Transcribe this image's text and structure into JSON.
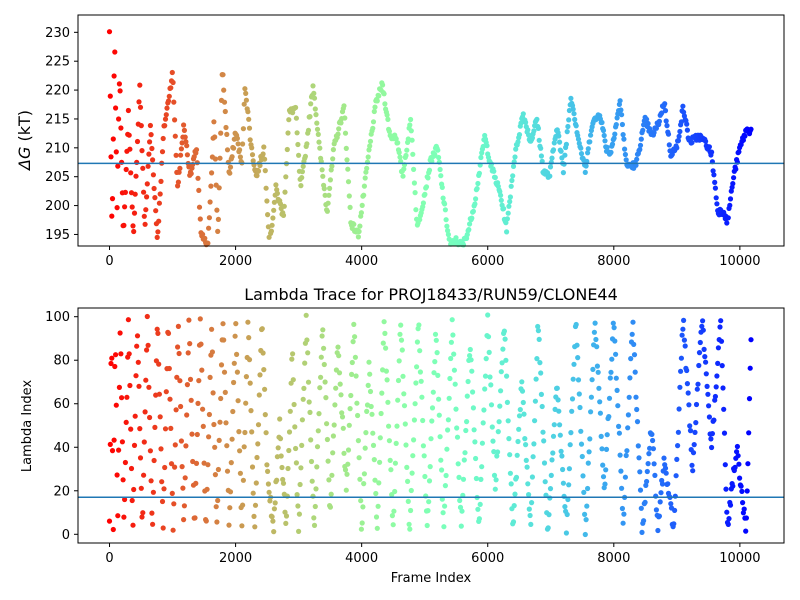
{
  "chart_data": [
    {
      "type": "scatter",
      "title": "",
      "xlabel": "",
      "ylabel_symbol": "ΔG",
      "ylabel_unit": " (kT)",
      "xlim": [
        -500,
        10700
      ],
      "ylim": [
        193,
        233
      ],
      "xticks": [
        0,
        2000,
        4000,
        6000,
        8000,
        10000
      ],
      "yticks": [
        195,
        200,
        205,
        210,
        215,
        220,
        225,
        230
      ],
      "hline": 207.3,
      "hline_color": "#1f77b4",
      "colormap": "rainbow-reversed",
      "x_max_frame": 10180,
      "keypoints": [
        [
          0,
          230
        ],
        [
          40,
          194
        ],
        [
          80,
          229
        ],
        [
          120,
          200
        ],
        [
          160,
          224
        ],
        [
          220,
          194
        ],
        [
          300,
          216
        ],
        [
          380,
          194
        ],
        [
          480,
          221
        ],
        [
          560,
          196
        ],
        [
          650,
          214
        ],
        [
          760,
          194
        ],
        [
          860,
          213
        ],
        [
          1000,
          223
        ],
        [
          1080,
          203
        ],
        [
          1180,
          214
        ],
        [
          1280,
          205
        ],
        [
          1380,
          210
        ],
        [
          1450,
          195
        ],
        [
          1560,
          193
        ],
        [
          1660,
          215
        ],
        [
          1720,
          194
        ],
        [
          1790,
          224
        ],
        [
          1900,
          205
        ],
        [
          2000,
          213
        ],
        [
          2100,
          207
        ],
        [
          2150,
          221
        ],
        [
          2250,
          210
        ],
        [
          2330,
          205
        ],
        [
          2450,
          210
        ],
        [
          2540,
          193
        ],
        [
          2640,
          203
        ],
        [
          2760,
          198
        ],
        [
          2850,
          216
        ],
        [
          2950,
          217
        ],
        [
          3030,
          203
        ],
        [
          3120,
          210
        ],
        [
          3230,
          221
        ],
        [
          3330,
          210
        ],
        [
          3450,
          199
        ],
        [
          3560,
          210
        ],
        [
          3720,
          217
        ],
        [
          3830,
          197
        ],
        [
          3950,
          195
        ],
        [
          4100,
          208
        ],
        [
          4230,
          218
        ],
        [
          4330,
          221
        ],
        [
          4450,
          212
        ],
        [
          4550,
          212
        ],
        [
          4650,
          205
        ],
        [
          4780,
          215
        ],
        [
          4880,
          196
        ],
        [
          4980,
          201
        ],
        [
          5100,
          208
        ],
        [
          5200,
          210
        ],
        [
          5300,
          201
        ],
        [
          5400,
          193
        ],
        [
          5500,
          194
        ],
        [
          5600,
          193
        ],
        [
          5700,
          196
        ],
        [
          5800,
          201
        ],
        [
          5950,
          212
        ],
        [
          6050,
          207
        ],
        [
          6200,
          202
        ],
        [
          6300,
          196
        ],
        [
          6420,
          208
        ],
        [
          6560,
          216
        ],
        [
          6680,
          211
        ],
        [
          6780,
          215
        ],
        [
          6880,
          206
        ],
        [
          6980,
          205
        ],
        [
          7100,
          214
        ],
        [
          7200,
          206
        ],
        [
          7320,
          219
        ],
        [
          7450,
          211
        ],
        [
          7550,
          206
        ],
        [
          7650,
          214
        ],
        [
          7780,
          216
        ],
        [
          7880,
          210
        ],
        [
          7950,
          209
        ],
        [
          8100,
          218
        ],
        [
          8200,
          207
        ],
        [
          8350,
          207
        ],
        [
          8500,
          215
        ],
        [
          8600,
          212
        ],
        [
          8700,
          214
        ],
        [
          8800,
          218
        ],
        [
          8900,
          209
        ],
        [
          9000,
          210
        ],
        [
          9100,
          217
        ],
        [
          9200,
          211
        ],
        [
          9350,
          212
        ],
        [
          9450,
          211
        ],
        [
          9550,
          209
        ],
        [
          9650,
          199
        ],
        [
          9750,
          199
        ],
        [
          9800,
          197
        ],
        [
          9900,
          205
        ],
        [
          10000,
          210
        ],
        [
          10100,
          213
        ],
        [
          10180,
          213
        ]
      ]
    },
    {
      "type": "scatter",
      "title": "Lambda Trace for PROJ18433/RUN59/CLONE44",
      "xlabel": "Frame Index",
      "ylabel": "Lambda Index",
      "xlim": [
        -500,
        10700
      ],
      "ylim": [
        -4,
        104
      ],
      "xticks": [
        0,
        2000,
        4000,
        6000,
        8000,
        10000
      ],
      "yticks": [
        0,
        20,
        40,
        60,
        80,
        100
      ],
      "hline": 17,
      "hline_color": "#1f77b4",
      "colormap": "rainbow-reversed",
      "x_max_frame": 10180,
      "keypoints": [
        [
          0,
          5
        ],
        [
          30,
          97
        ],
        [
          60,
          2
        ],
        [
          90,
          99
        ],
        [
          130,
          5
        ],
        [
          170,
          99
        ],
        [
          230,
          2
        ],
        [
          300,
          99
        ],
        [
          370,
          3
        ],
        [
          440,
          99
        ],
        [
          520,
          2
        ],
        [
          600,
          99
        ],
        [
          680,
          1
        ],
        [
          760,
          99
        ],
        [
          850,
          2
        ],
        [
          930,
          99
        ],
        [
          1010,
          1
        ],
        [
          1090,
          99
        ],
        [
          1180,
          2
        ],
        [
          1260,
          99
        ],
        [
          1350,
          3
        ],
        [
          1440,
          99
        ],
        [
          1530,
          2
        ],
        [
          1620,
          95
        ],
        [
          1700,
          2
        ],
        [
          1800,
          99
        ],
        [
          1900,
          2
        ],
        [
          2000,
          99
        ],
        [
          2100,
          3
        ],
        [
          2200,
          99
        ],
        [
          2300,
          1
        ],
        [
          2420,
          99
        ],
        [
          2500,
          30
        ],
        [
          2600,
          2
        ],
        [
          2700,
          50
        ],
        [
          2800,
          2
        ],
        [
          2900,
          85
        ],
        [
          3000,
          1
        ],
        [
          3120,
          99
        ],
        [
          3250,
          2
        ],
        [
          3380,
          99
        ],
        [
          3500,
          10
        ],
        [
          3620,
          90
        ],
        [
          3760,
          20
        ],
        [
          3880,
          99
        ],
        [
          4000,
          1
        ],
        [
          4120,
          80
        ],
        [
          4250,
          2
        ],
        [
          4360,
          99
        ],
        [
          4500,
          2
        ],
        [
          4620,
          99
        ],
        [
          4760,
          1
        ],
        [
          4900,
          99
        ],
        [
          5040,
          2
        ],
        [
          5180,
          95
        ],
        [
          5300,
          2
        ],
        [
          5440,
          99
        ],
        [
          5580,
          1
        ],
        [
          5720,
          90
        ],
        [
          5860,
          1
        ],
        [
          6000,
          99
        ],
        [
          6120,
          20
        ],
        [
          6260,
          99
        ],
        [
          6400,
          1
        ],
        [
          6540,
          70
        ],
        [
          6680,
          2
        ],
        [
          6800,
          99
        ],
        [
          6950,
          1
        ],
        [
          7100,
          70
        ],
        [
          7250,
          2
        ],
        [
          7400,
          99
        ],
        [
          7550,
          1
        ],
        [
          7700,
          99
        ],
        [
          7850,
          20
        ],
        [
          8000,
          99
        ],
        [
          8150,
          5
        ],
        [
          8300,
          99
        ],
        [
          8450,
          2
        ],
        [
          8600,
          50
        ],
        [
          8700,
          2
        ],
        [
          8800,
          35
        ],
        [
          8950,
          2
        ],
        [
          9100,
          99
        ],
        [
          9250,
          30
        ],
        [
          9400,
          99
        ],
        [
          9550,
          40
        ],
        [
          9700,
          99
        ],
        [
          9800,
          2
        ],
        [
          9950,
          40
        ],
        [
          10100,
          1
        ],
        [
          10180,
          95
        ]
      ]
    }
  ]
}
